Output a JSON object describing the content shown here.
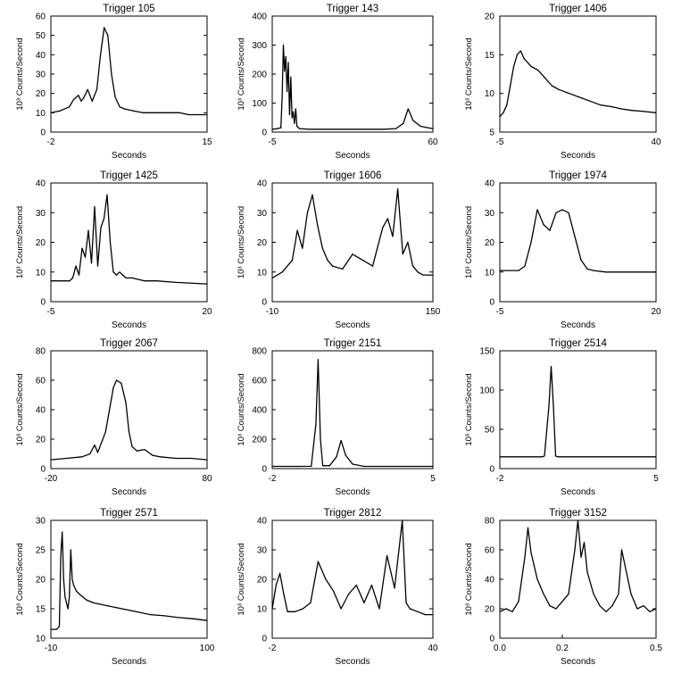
{
  "figure": {
    "panels": [
      {
        "title": "Trigger 105",
        "xlabel": "Seconds",
        "ylabel": "10³ Counts/Second",
        "xticks": [
          -2,
          15
        ],
        "yticks": [
          0,
          10,
          20,
          30,
          40,
          50,
          60
        ]
      },
      {
        "title": "Trigger 143",
        "xlabel": "Seconds",
        "ylabel": "10³ Counts/Second",
        "xticks": [
          -5,
          60
        ],
        "yticks": [
          0,
          100,
          200,
          300,
          400
        ]
      },
      {
        "title": "Trigger 1406",
        "xlabel": "Seconds",
        "ylabel": "10³ Counts/Second",
        "xticks": [
          -5,
          40
        ],
        "yticks": [
          5,
          10,
          15,
          20
        ]
      },
      {
        "title": "Trigger 1425",
        "xlabel": "Seconds",
        "ylabel": "10³ Counts/Second",
        "xticks": [
          -5,
          20
        ],
        "yticks": [
          0,
          10,
          20,
          30,
          40
        ]
      },
      {
        "title": "Trigger 1606",
        "xlabel": "Seconds",
        "ylabel": "10³ Counts/Second",
        "xticks": [
          -10,
          150
        ],
        "yticks": [
          0,
          10,
          20,
          30,
          40
        ]
      },
      {
        "title": "Trigger 1974",
        "xlabel": "Seconds",
        "ylabel": "10³ Counts/Second",
        "xticks": [
          -5,
          20
        ],
        "yticks": [
          0,
          10,
          20,
          30,
          40
        ]
      },
      {
        "title": "Trigger 2067",
        "xlabel": "Seconds",
        "ylabel": "10³ Counts/Second",
        "xticks": [
          -20,
          80
        ],
        "yticks": [
          0,
          20,
          40,
          60,
          80
        ]
      },
      {
        "title": "Trigger 2151",
        "xlabel": "Seconds",
        "ylabel": "10³ Counts/Second",
        "xticks": [
          -2,
          5
        ],
        "yticks": [
          0,
          200,
          400,
          600,
          800
        ]
      },
      {
        "title": "Trigger 2514",
        "xlabel": "Seconds",
        "ylabel": "10³ Counts/Second",
        "xticks": [
          -2,
          5
        ],
        "yticks": [
          0,
          50,
          100,
          150
        ]
      },
      {
        "title": "Trigger 2571",
        "xlabel": "Seconds",
        "ylabel": "10³ Counts/Second",
        "xticks": [
          -10,
          100
        ],
        "yticks": [
          10,
          15,
          20,
          25,
          30
        ]
      },
      {
        "title": "Trigger 2812",
        "xlabel": "Seconds",
        "ylabel": "10³ Counts/Second",
        "xticks": [
          -2,
          40
        ],
        "yticks": [
          0,
          10,
          20,
          30,
          40
        ]
      },
      {
        "title": "Trigger 3152",
        "xlabel": "Seconds",
        "ylabel": "10³ Counts/Second",
        "xticks": [
          "0.0",
          "0.2",
          "0.5"
        ],
        "yticks": [
          0,
          20,
          40,
          60,
          80
        ]
      }
    ]
  },
  "chart_data": [
    {
      "type": "line",
      "title": "Trigger 105",
      "xlabel": "Seconds",
      "ylabel": "10³ Counts/Second",
      "xlim": [
        -2,
        15
      ],
      "ylim": [
        0,
        60
      ],
      "line_color": "#000000",
      "x": [
        -2,
        -1,
        0,
        0.5,
        1,
        1.3,
        1.6,
        2,
        2.5,
        3,
        3.4,
        3.8,
        4.2,
        4.6,
        5,
        5.5,
        6,
        7,
        8,
        9,
        10,
        11,
        12,
        13,
        14,
        15
      ],
      "y": [
        10,
        11,
        13,
        17,
        19,
        16,
        18,
        22,
        16,
        22,
        40,
        54,
        50,
        30,
        18,
        13,
        12,
        11,
        10,
        10,
        10,
        10,
        10,
        9,
        9,
        9
      ]
    },
    {
      "type": "line",
      "title": "Trigger 143",
      "xlabel": "Seconds",
      "ylabel": "10³ Counts/Second",
      "xlim": [
        -5,
        60
      ],
      "ylim": [
        0,
        400
      ],
      "line_color": "#000000",
      "x": [
        -5,
        -3,
        -1.5,
        -1,
        -0.5,
        0,
        0.5,
        1,
        1.5,
        2,
        2.5,
        3,
        3.5,
        4,
        4.5,
        5,
        6,
        10,
        20,
        30,
        40,
        45,
        48,
        50,
        52,
        55,
        58,
        60
      ],
      "y": [
        10,
        12,
        15,
        120,
        300,
        210,
        260,
        140,
        240,
        60,
        190,
        50,
        70,
        30,
        80,
        20,
        12,
        10,
        10,
        10,
        10,
        12,
        30,
        80,
        40,
        20,
        15,
        12
      ]
    },
    {
      "type": "line",
      "title": "Trigger 1406",
      "xlabel": "Seconds",
      "ylabel": "10³ Counts/Second",
      "xlim": [
        -5,
        40
      ],
      "ylim": [
        5,
        20
      ],
      "line_color": "#000000",
      "x": [
        -5,
        -4,
        -3,
        -2,
        -1,
        0,
        1,
        2,
        4,
        6,
        8,
        10,
        12,
        15,
        18,
        21,
        24,
        27,
        30,
        33,
        36,
        40
      ],
      "y": [
        7,
        7.5,
        8.5,
        11,
        13.5,
        15,
        15.5,
        14.5,
        13.5,
        13,
        12,
        11,
        10.5,
        10,
        9.5,
        9,
        8.5,
        8.3,
        8,
        7.8,
        7.7,
        7.5
      ]
    },
    {
      "type": "line",
      "title": "Trigger 1425",
      "xlabel": "Seconds",
      "ylabel": "10³ Counts/Second",
      "xlim": [
        -5,
        20
      ],
      "ylim": [
        0,
        40
      ],
      "line_color": "#000000",
      "x": [
        -5,
        -3,
        -2,
        -1.5,
        -1,
        -0.5,
        0,
        0.5,
        1,
        1.5,
        2,
        2.5,
        3,
        3.5,
        4,
        4.5,
        5,
        5.5,
        6,
        6.5,
        7,
        8,
        10,
        12,
        15,
        20
      ],
      "y": [
        7,
        7,
        7,
        8,
        12,
        9,
        18,
        15,
        24,
        13,
        32,
        12,
        25,
        28,
        36,
        20,
        10,
        9,
        10,
        9,
        8,
        8,
        7,
        7,
        6.5,
        6
      ]
    },
    {
      "type": "line",
      "title": "Trigger 1606",
      "xlabel": "Seconds",
      "ylabel": "10³ Counts/Second",
      "xlim": [
        -10,
        150
      ],
      "ylim": [
        0,
        40
      ],
      "line_color": "#000000",
      "x": [
        -10,
        0,
        10,
        15,
        20,
        25,
        30,
        35,
        40,
        45,
        50,
        60,
        70,
        80,
        90,
        100,
        105,
        110,
        115,
        120,
        125,
        130,
        135,
        140,
        150
      ],
      "y": [
        8,
        10,
        14,
        24,
        18,
        30,
        36,
        26,
        18,
        14,
        12,
        11,
        16,
        14,
        12,
        25,
        28,
        22,
        38,
        16,
        20,
        12,
        10,
        9,
        9
      ]
    },
    {
      "type": "line",
      "title": "Trigger 1974",
      "xlabel": "Seconds",
      "ylabel": "10³ Counts/Second",
      "xlim": [
        -5,
        20
      ],
      "ylim": [
        0,
        40
      ],
      "line_color": "#000000",
      "x": [
        -5,
        -2,
        -1,
        0,
        1,
        2,
        3,
        4,
        5,
        6,
        7,
        8,
        9,
        10,
        12,
        15,
        18,
        20
      ],
      "y": [
        10.5,
        10.5,
        12,
        20,
        31,
        26,
        24,
        30,
        31,
        30,
        22,
        14,
        11,
        10.5,
        10,
        10,
        10,
        10
      ]
    },
    {
      "type": "line",
      "title": "Trigger 2067",
      "xlabel": "Seconds",
      "ylabel": "10³ Counts/Second",
      "xlim": [
        -20,
        80
      ],
      "ylim": [
        0,
        80
      ],
      "line_color": "#000000",
      "x": [
        -20,
        -10,
        0,
        5,
        8,
        10,
        15,
        20,
        22,
        25,
        28,
        30,
        32,
        35,
        40,
        45,
        50,
        60,
        70,
        80
      ],
      "y": [
        6,
        7,
        8,
        10,
        16,
        11,
        25,
        55,
        60,
        58,
        45,
        25,
        15,
        12,
        13,
        9,
        8,
        7,
        7,
        6
      ]
    },
    {
      "type": "line",
      "title": "Trigger 2151",
      "xlabel": "Seconds",
      "ylabel": "10³ Counts/Second",
      "xlim": [
        -2,
        5
      ],
      "ylim": [
        0,
        800
      ],
      "line_color": "#000000",
      "x": [
        -2,
        -1,
        -0.3,
        -0.1,
        0,
        0.1,
        0.2,
        0.5,
        0.8,
        1,
        1.2,
        1.5,
        2,
        3,
        4,
        5
      ],
      "y": [
        15,
        15,
        16,
        300,
        740,
        200,
        20,
        20,
        80,
        190,
        90,
        30,
        15,
        15,
        15,
        15
      ]
    },
    {
      "type": "line",
      "title": "Trigger 2514",
      "xlabel": "Seconds",
      "ylabel": "10³ Counts/Second",
      "xlim": [
        -2,
        5
      ],
      "ylim": [
        0,
        150
      ],
      "line_color": "#000000",
      "x": [
        -2,
        -1,
        -0.1,
        0,
        0.2,
        0.3,
        0.4,
        0.5,
        0.6,
        1,
        2,
        3,
        4,
        5
      ],
      "y": [
        15,
        15,
        15,
        16,
        80,
        130,
        80,
        16,
        15,
        15,
        15,
        15,
        15,
        15
      ]
    },
    {
      "type": "line",
      "title": "Trigger 2571",
      "xlabel": "Seconds",
      "ylabel": "10³ Counts/Second",
      "xlim": [
        -10,
        100
      ],
      "ylim": [
        10,
        30
      ],
      "line_color": "#000000",
      "x": [
        -10,
        -6,
        -4,
        -3,
        -2,
        -1,
        0,
        2,
        3,
        4,
        5,
        6,
        8,
        10,
        15,
        20,
        30,
        40,
        50,
        60,
        70,
        80,
        90,
        100
      ],
      "y": [
        11.5,
        11.5,
        12,
        24,
        28,
        20,
        17,
        15,
        17,
        25,
        20,
        19,
        18,
        17.5,
        16.5,
        16,
        15.5,
        15,
        14.5,
        14,
        13.8,
        13.5,
        13.3,
        13
      ]
    },
    {
      "type": "line",
      "title": "Trigger 2812",
      "xlabel": "Seconds",
      "ylabel": "10³ Counts/Second",
      "xlim": [
        -2,
        40
      ],
      "ylim": [
        0,
        40
      ],
      "line_color": "#000000",
      "x": [
        -2,
        -1,
        0,
        1,
        2,
        4,
        6,
        8,
        10,
        12,
        14,
        16,
        18,
        20,
        22,
        24,
        26,
        28,
        30,
        32,
        33,
        34,
        36,
        38,
        40
      ],
      "y": [
        10,
        18,
        22,
        15,
        9,
        9,
        10,
        12,
        26,
        20,
        16,
        10,
        15,
        18,
        12,
        18,
        10,
        28,
        17,
        40,
        12,
        10,
        9,
        8,
        8
      ]
    },
    {
      "type": "line",
      "title": "Trigger 3152",
      "xlabel": "Seconds",
      "ylabel": "10³ Counts/Second",
      "xlim": [
        0,
        0.5
      ],
      "ylim": [
        0,
        80
      ],
      "line_color": "#000000",
      "x": [
        0,
        0.02,
        0.04,
        0.06,
        0.08,
        0.09,
        0.1,
        0.12,
        0.14,
        0.16,
        0.18,
        0.2,
        0.22,
        0.24,
        0.25,
        0.26,
        0.27,
        0.28,
        0.3,
        0.32,
        0.34,
        0.36,
        0.38,
        0.39,
        0.4,
        0.42,
        0.44,
        0.46,
        0.48,
        0.5
      ],
      "y": [
        18,
        20,
        18,
        25,
        55,
        75,
        58,
        40,
        30,
        22,
        20,
        25,
        30,
        60,
        80,
        55,
        65,
        45,
        30,
        22,
        18,
        22,
        30,
        60,
        50,
        30,
        20,
        22,
        18,
        20
      ]
    }
  ]
}
